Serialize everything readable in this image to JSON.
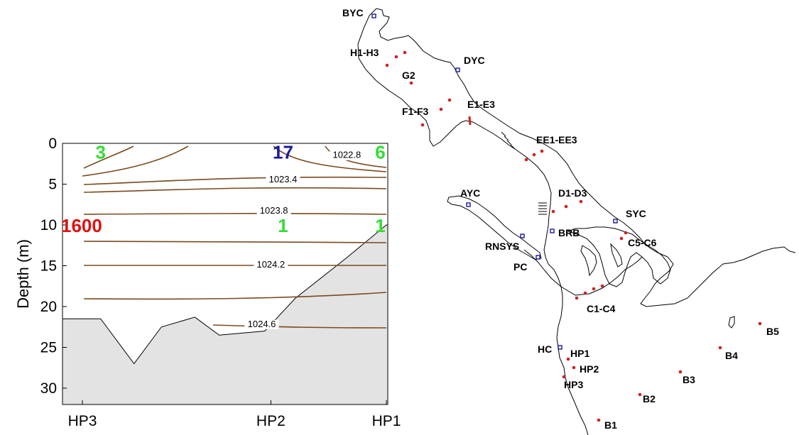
{
  "colors": {
    "contour": "#7a4a1c",
    "seabed": "#e3e3e3",
    "annot_green": "#33dd33",
    "annot_blue": "#1a1aa0",
    "annot_red": "#e01010",
    "site_dot": "#d02020",
    "harbor_square": "#1a1aa0"
  },
  "chart_data": {
    "type": "contour",
    "ylabel": "Depth (m)",
    "ylim": [
      0,
      32
    ],
    "y_inverted": true,
    "yticks": [
      "0",
      "5",
      "10",
      "15",
      "20",
      "25",
      "30"
    ],
    "ytick_values": [
      0,
      5,
      10,
      15,
      20,
      25,
      30
    ],
    "xticks": [
      {
        "label": "HP3",
        "x": 0
      },
      {
        "label": "HP2",
        "x": 0.62
      },
      {
        "label": "HP1",
        "x": 1
      }
    ],
    "contour_labels": [
      {
        "text": "1022.8",
        "x": 0.87,
        "y": 1.8
      },
      {
        "text": "1023.4",
        "x": 0.66,
        "y": 4.8
      },
      {
        "text": "1023.8",
        "x": 0.63,
        "y": 8.6
      },
      {
        "text": "1024.2",
        "x": 0.62,
        "y": 15.2
      },
      {
        "text": "1024.6",
        "x": 0.59,
        "y": 22.5
      }
    ],
    "annotations": [
      {
        "text": "3",
        "x": 0.06,
        "y": 1,
        "color": "green"
      },
      {
        "text": "17",
        "x": 0.66,
        "y": 1,
        "color": "blue"
      },
      {
        "text": "6",
        "x": 0.98,
        "y": 1,
        "color": "green"
      },
      {
        "text": "1600",
        "x": 0.04,
        "y": 10,
        "color": "red"
      },
      {
        "text": "1",
        "x": 0.66,
        "y": 10,
        "color": "green"
      },
      {
        "text": "1",
        "x": 0.98,
        "y": 10,
        "color": "green"
      }
    ],
    "seabed_profile": [
      {
        "x": 0,
        "depth": 21.5
      },
      {
        "x": 0.06,
        "depth": 21.5
      },
      {
        "x": 0.17,
        "depth": 27
      },
      {
        "x": 0.26,
        "depth": 22.5
      },
      {
        "x": 0.37,
        "depth": 21.3
      },
      {
        "x": 0.45,
        "depth": 23.5
      },
      {
        "x": 0.6,
        "depth": 23
      },
      {
        "x": 0.7,
        "depth": 19
      },
      {
        "x": 0.87,
        "depth": 14
      },
      {
        "x": 1,
        "depth": 10
      }
    ]
  },
  "map": {
    "station_labels": [
      {
        "id": "byc",
        "text": "BYC"
      },
      {
        "id": "h1h3",
        "text": "H1-H3"
      },
      {
        "id": "dyc",
        "text": "DYC"
      },
      {
        "id": "g2",
        "text": "G2"
      },
      {
        "id": "e1e3",
        "text": "E1-E3"
      },
      {
        "id": "f1f3",
        "text": "F1-F3"
      },
      {
        "id": "ee1ee3",
        "text": "EE1-EE3"
      },
      {
        "id": "ayc",
        "text": "AYC"
      },
      {
        "id": "d1d3",
        "text": "D1-D3"
      },
      {
        "id": "syc",
        "text": "SYC"
      },
      {
        "id": "brb",
        "text": "BRB"
      },
      {
        "id": "c5c6",
        "text": "C5-C6"
      },
      {
        "id": "rnsys",
        "text": "RNSYS"
      },
      {
        "id": "pc",
        "text": "PC"
      },
      {
        "id": "c1c4",
        "text": "C1-C4"
      },
      {
        "id": "b5",
        "text": "B5"
      },
      {
        "id": "b4",
        "text": "B4"
      },
      {
        "id": "hc",
        "text": "HC"
      },
      {
        "id": "hp1",
        "text": "HP1"
      },
      {
        "id": "hp2",
        "text": "HP2"
      },
      {
        "id": "hp3",
        "text": "HP3"
      },
      {
        "id": "b3",
        "text": "B3"
      },
      {
        "id": "b2",
        "text": "B2"
      },
      {
        "id": "b1",
        "text": "B1"
      }
    ]
  }
}
